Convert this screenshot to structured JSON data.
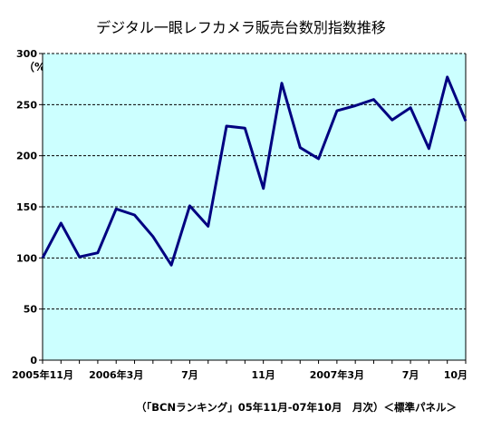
{
  "chart_data": {
    "type": "line",
    "title": "デジタル一眼レフカメラ販売台数別指数推移",
    "unit_label": "（%）",
    "footer": "（「BCNランキング」05年11月-07年10月　月次）＜標準パネル＞",
    "ylim": [
      0,
      300
    ],
    "yticks": [
      0,
      50,
      100,
      150,
      200,
      250,
      300
    ],
    "grid": "horizontal-dashed",
    "legend": "none",
    "x": [
      "2005年11月",
      "12月",
      "2006年1月",
      "2月",
      "2006年3月",
      "4月",
      "5月",
      "6月",
      "7月",
      "8月",
      "9月",
      "10月",
      "11月",
      "12月",
      "2007年1月",
      "2月",
      "2007年3月",
      "4月",
      "5月",
      "6月",
      "7月",
      "8月",
      "9月",
      "10月"
    ],
    "x_tick_labels": [
      {
        "index": 0,
        "label": "2005年11月"
      },
      {
        "index": 4,
        "label": "2006年3月"
      },
      {
        "index": 8,
        "label": "7月"
      },
      {
        "index": 12,
        "label": "11月"
      },
      {
        "index": 16,
        "label": "2007年3月"
      },
      {
        "index": 20,
        "label": "7月"
      },
      {
        "index": 23,
        "label": "10月"
      }
    ],
    "series": [
      {
        "name": "",
        "color": "#000080",
        "values": [
          100,
          134,
          101,
          105,
          148,
          142,
          121,
          93,
          151,
          131,
          229,
          227,
          168,
          271,
          208,
          197,
          244,
          249,
          255,
          235,
          247,
          207,
          277,
          234
        ]
      }
    ]
  },
  "colors": {
    "plot_background": "#ccffff",
    "line": "#000080",
    "grid": "#000000"
  }
}
